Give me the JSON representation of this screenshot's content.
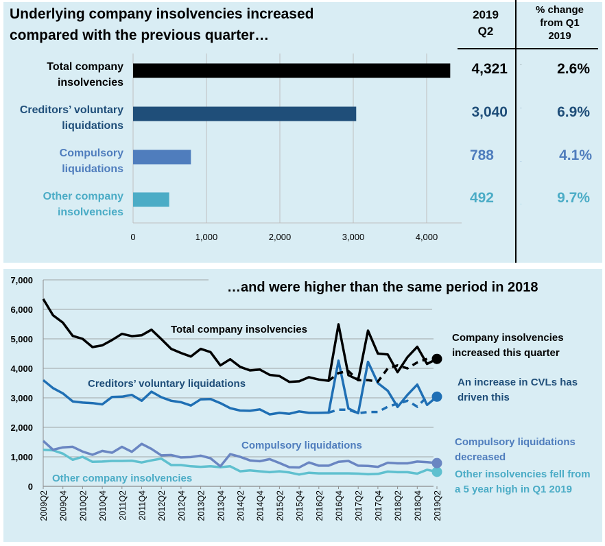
{
  "top_panel": {
    "headline_line1": "Underlying  company insolvencies increased",
    "headline_line2": "compared with the previous quarter…",
    "col_value_line1": "2019",
    "col_value_line2": "Q2",
    "col_change_line1": "% change",
    "col_change_line2": "from Q1",
    "col_change_line3": "2019"
  },
  "bottom_panel": {
    "headline": "…and were higher than the same period in 2018"
  },
  "colors": {
    "total": "#000000",
    "cvl": "#1f4e79",
    "compulsory": "#4f7dbd",
    "other": "#4bacc6",
    "cvl_line": "#1f6fb4",
    "compulsory_line": "#6a86c2",
    "other_line": "#5fc0cf",
    "panel_bg": "#d9edf4"
  },
  "chart_data": [
    {
      "type": "bar",
      "orientation": "horizontal",
      "title": "Underlying  company insolvencies increased compared with the previous quarter…",
      "categories": [
        {
          "line1": "Total company",
          "line2": "insolvencies",
          "value": 4321,
          "value_label": "4,321",
          "pct_change": "2.6%",
          "direction": "up",
          "color_key": "total"
        },
        {
          "line1": "Creditors’ voluntary",
          "line2": "liquidations",
          "value": 3040,
          "value_label": "3,040",
          "pct_change": "6.9%",
          "direction": "up",
          "color_key": "cvl"
        },
        {
          "line1": "Compulsory",
          "line2": "liquidations",
          "value": 788,
          "value_label": "788",
          "pct_change": "4.1%",
          "direction": "down",
          "color_key": "compulsory"
        },
        {
          "line1": "Other company",
          "line2": "insolvencies",
          "value": 492,
          "value_label": "492",
          "pct_change": "9.7%",
          "direction": "down",
          "color_key": "other"
        }
      ],
      "xlim": [
        0,
        4500
      ],
      "x_ticks": [
        0,
        1000,
        2000,
        3000,
        4000
      ],
      "x_tick_labels": [
        "0",
        "1,000",
        "2,000",
        "3,000",
        "4,000"
      ]
    },
    {
      "type": "line",
      "title": "…and were higher than the same period in 2018",
      "x_labels": [
        "2009Q2",
        "2009Q4",
        "2010Q2",
        "2010Q4",
        "2011Q2",
        "2011Q4",
        "2012Q2",
        "2012Q4",
        "2013Q2",
        "2013Q4",
        "2014Q2",
        "2014Q4",
        "2015Q2",
        "2015Q4",
        "2016Q2",
        "2016Q4",
        "2017Q2",
        "2017Q4",
        "2018Q2",
        "2018Q4",
        "2019Q2"
      ],
      "ylim": [
        0,
        7000
      ],
      "y_ticks": [
        0,
        1000,
        2000,
        3000,
        4000,
        5000,
        6000,
        7000
      ],
      "y_tick_labels": [
        "0",
        "1,000",
        "2,000",
        "3,000",
        "4,000",
        "5,000",
        "6,000",
        "7,000"
      ],
      "series": [
        {
          "name": "Total company insolvencies",
          "color_key": "total",
          "values": [
            6350,
            5800,
            5550,
            5100,
            5000,
            4720,
            4780,
            4960,
            5170,
            5090,
            5120,
            5310,
            4990,
            4660,
            4520,
            4400,
            4660,
            4550,
            4100,
            4310,
            4050,
            3930,
            3960,
            3780,
            3740,
            3540,
            3560,
            3700,
            3620,
            3580,
            5490,
            3770,
            3610,
            5280,
            4500,
            4470,
            3870,
            4380,
            4730,
            4150,
            4321
          ],
          "underlying_from_index": 29,
          "underlying_values": [
            3580,
            3840,
            3910,
            3600,
            3600,
            3550,
            4000,
            4100,
            4000,
            4200,
            4321
          ],
          "annotation_line1": "Company insolvencies",
          "annotation_line2": "increased this quarter"
        },
        {
          "name": "Creditors’ voluntary liquidations",
          "color_key": "cvl_line",
          "values": [
            3600,
            3330,
            3150,
            2880,
            2840,
            2820,
            2780,
            3030,
            3040,
            3100,
            2900,
            3210,
            3020,
            2900,
            2850,
            2740,
            2950,
            2960,
            2820,
            2650,
            2570,
            2560,
            2610,
            2440,
            2490,
            2460,
            2540,
            2490,
            2490,
            2500,
            4260,
            2640,
            2480,
            4220,
            3500,
            3240,
            2690,
            3100,
            3450,
            2760,
            3040
          ],
          "underlying_from_index": 29,
          "underlying_values": [
            2500,
            2600,
            2600,
            2480,
            2520,
            2520,
            2700,
            2800,
            2900,
            2700,
            3040
          ],
          "annotation_line1": "An increase in CVLs has",
          "annotation_line2": "driven this"
        },
        {
          "name": "Compulsory liquidations",
          "color_key": "compulsory_line",
          "values": [
            1540,
            1240,
            1320,
            1340,
            1180,
            1070,
            1200,
            1140,
            1340,
            1170,
            1440,
            1270,
            1050,
            1060,
            980,
            990,
            1040,
            950,
            680,
            1090,
            1000,
            880,
            850,
            920,
            790,
            650,
            640,
            810,
            700,
            700,
            830,
            860,
            700,
            690,
            660,
            800,
            780,
            780,
            840,
            820,
            788
          ],
          "annotation_line1": "Compulsory liquidations",
          "annotation_line2": "decreased"
        },
        {
          "name": "Other company insolvencies",
          "color_key": "other_line",
          "values": [
            1240,
            1220,
            1110,
            900,
            1000,
            830,
            840,
            860,
            860,
            870,
            810,
            880,
            940,
            720,
            720,
            680,
            660,
            680,
            650,
            680,
            510,
            540,
            510,
            480,
            510,
            470,
            400,
            460,
            440,
            440,
            440,
            440,
            430,
            410,
            420,
            500,
            480,
            480,
            430,
            560,
            492
          ],
          "annotation_line1": "Other insolvencies fell from",
          "annotation_line2": "a 5 year high in Q1 2019"
        }
      ]
    }
  ]
}
